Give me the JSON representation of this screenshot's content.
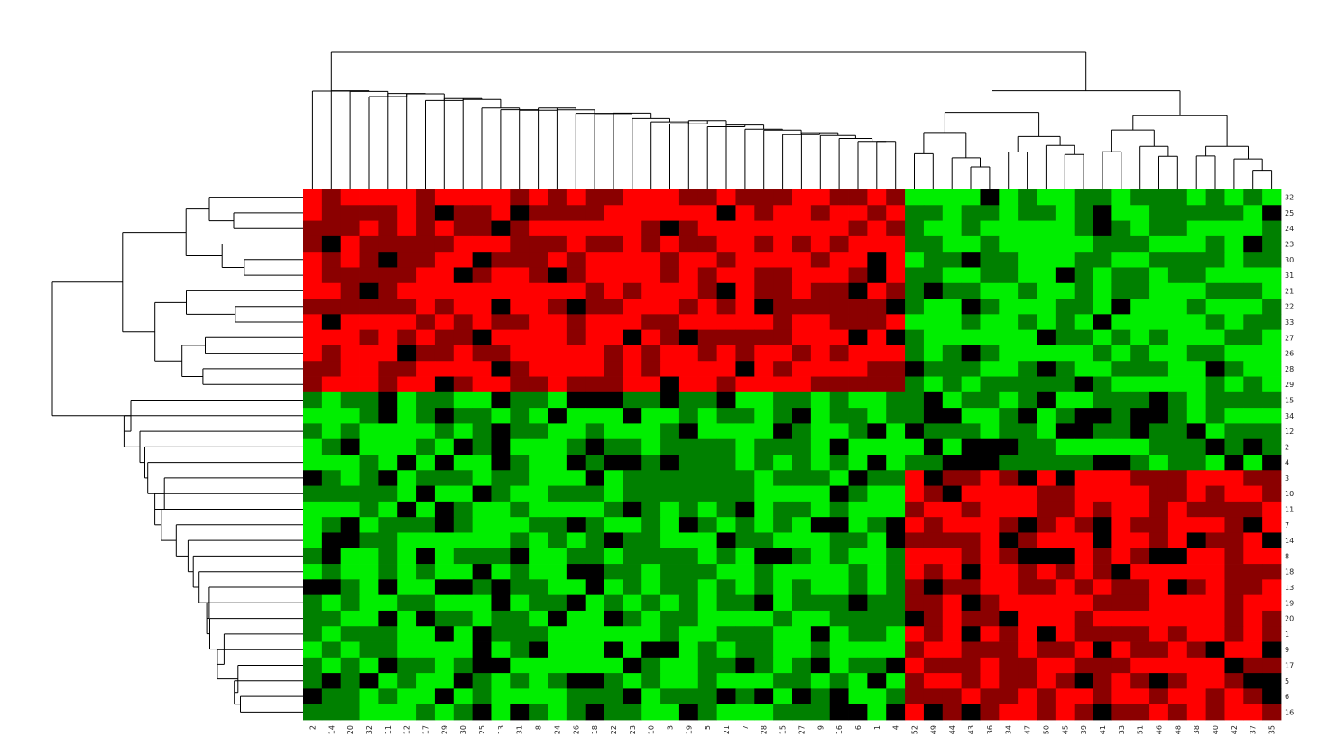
{
  "chart_data": {
    "type": "heatmap",
    "title": "",
    "colormap": {
      "high": "#ff0000",
      "mid": "#000000",
      "low": "#00ff00",
      "dark_red": "#8b0000",
      "dark_green": "#008000"
    },
    "value_scale": "-2 (bright green) .. -1 (dark green) .. 0 (black) .. 1 (dark red) .. 2 (bright red)",
    "columns": [
      "2",
      "14",
      "20",
      "32",
      "11",
      "12",
      "17",
      "29",
      "30",
      "25",
      "13",
      "31",
      "8",
      "24",
      "26",
      "18",
      "22",
      "23",
      "10",
      "3",
      "19",
      "5",
      "21",
      "7",
      "28",
      "15",
      "27",
      "9",
      "16",
      "6",
      "1",
      "4",
      "52",
      "49",
      "44",
      "43",
      "36",
      "34",
      "47",
      "50",
      "45",
      "39",
      "41",
      "33",
      "51",
      "46",
      "48",
      "38",
      "40",
      "42",
      "37",
      "35"
    ],
    "rows": [
      "32",
      "25",
      "24",
      "23",
      "30",
      "31",
      "21",
      "22",
      "33",
      "27",
      "26",
      "28",
      "29",
      "15",
      "34",
      "12",
      "2",
      "4",
      "3",
      "10",
      "11",
      "7",
      "14",
      "8",
      "18",
      "13",
      "19",
      "20",
      "1",
      "9",
      "17",
      "5",
      "6",
      "16"
    ],
    "row_groups": [
      "32",
      "25",
      "24",
      "23",
      "30",
      "31",
      "21",
      "22",
      "33",
      "27",
      "26",
      "28",
      "29",
      "15",
      "34",
      "12",
      "2",
      "4",
      "3",
      "10",
      "11",
      "7",
      "14",
      "8",
      "18",
      "13",
      "19",
      "20",
      "1",
      "9",
      "17",
      "5",
      "6",
      "16"
    ],
    "column_dendrogram": "two main clusters: columns 2..4 (left) and 52..35 (right)",
    "row_dendrogram": "two main clusters: rows 32..29 (top) and 15..16 (bottom)"
  }
}
